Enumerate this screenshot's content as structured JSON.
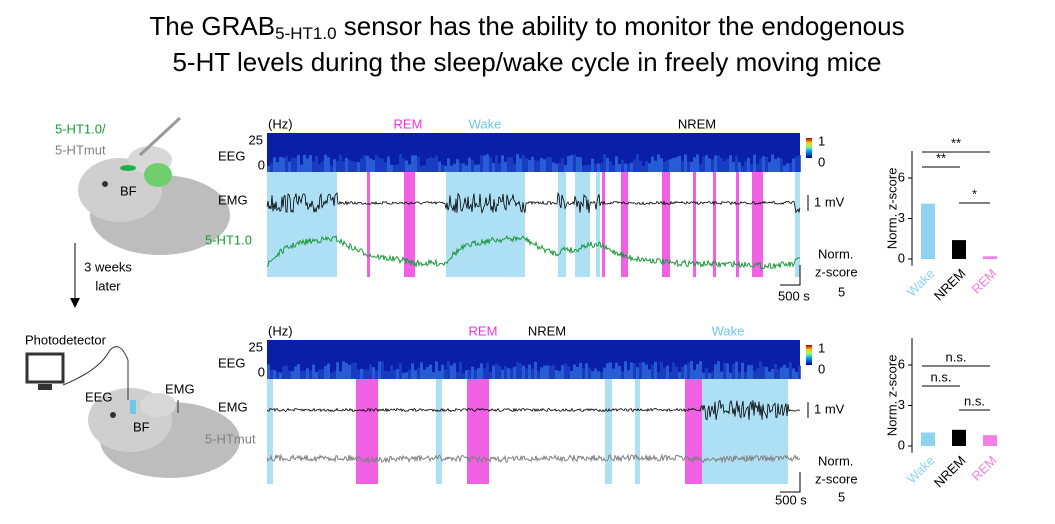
{
  "title": {
    "line1_pre": "The GRAB",
    "subscript": "5-HT1.0",
    "line1_post": " sensor has the ability to monitor the endogenous",
    "line2": "5-HT levels during the sleep/wake cycle in freely moving mice"
  },
  "schematic": {
    "sensor_label": "5-HT1.0/",
    "mut_label": "5-HTmut",
    "region_top": "BF",
    "arrow_label_1": "3 weeks",
    "arrow_label_2": "later",
    "photodetector": "Photodetector",
    "eeg": "EEG",
    "emg": "EMG",
    "region_bottom": "BF"
  },
  "panels": [
    {
      "freq_unit": "(Hz)",
      "states": [
        "REM",
        "Wake",
        "NREM"
      ],
      "freq_ticks": [
        "25",
        "0"
      ],
      "colorbar_ticks": [
        "1",
        "0"
      ],
      "eeg": "EEG",
      "emg": "EMG",
      "emg_scale": "1 mV",
      "trace_label": "5-HT1.0",
      "z_scale": [
        "Norm.",
        "z-score",
        "5"
      ],
      "time_scale": "500 s",
      "summary": {
        "type": "bar",
        "categories": [
          "Wake",
          "NREM",
          "REM"
        ],
        "values": [
          4.1,
          1.4,
          0.2
        ],
        "colors": [
          "#8fd3f0",
          "#000000",
          "#f27ee6"
        ],
        "ylim": [
          -0.5,
          8
        ],
        "yticks": [
          0,
          3,
          6
        ],
        "ylabel": "Norm. z-score",
        "significance": [
          "**",
          "**",
          "*"
        ]
      }
    },
    {
      "freq_unit": "(Hz)",
      "states": [
        "REM",
        "NREM",
        "Wake"
      ],
      "freq_ticks": [
        "25",
        "0"
      ],
      "colorbar_ticks": [
        "1",
        "0"
      ],
      "eeg": "EEG",
      "emg": "EMG",
      "emg_scale": "1 mV",
      "trace_label": "5-HTmut",
      "z_scale": [
        "Norm.",
        "z-score",
        "5"
      ],
      "time_scale": "500 s",
      "summary": {
        "type": "bar",
        "categories": [
          "Wake",
          "NREM",
          "REM"
        ],
        "values": [
          1.0,
          1.2,
          0.8
        ],
        "colors": [
          "#8fd3f0",
          "#000000",
          "#f27ee6"
        ],
        "ylim": [
          -0.5,
          8
        ],
        "yticks": [
          0,
          3,
          6
        ],
        "ylabel": "Norm. z-score",
        "significance": [
          "n.s.",
          "n.s.",
          "n.s."
        ]
      }
    }
  ]
}
